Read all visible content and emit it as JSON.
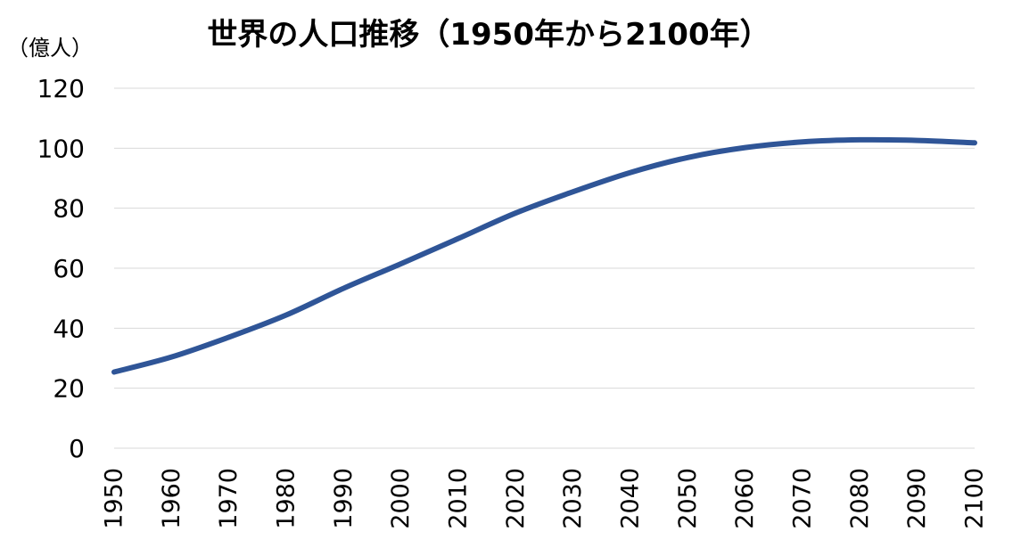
{
  "chart_data": {
    "type": "line",
    "title": "世界の人口推移（1950年から2100年）",
    "unit_label": "（億人）",
    "xlabel": "",
    "ylabel": "",
    "ylim": [
      0,
      120
    ],
    "y_ticks": [
      "0",
      "20",
      "40",
      "60",
      "80",
      "100",
      "120"
    ],
    "x_ticks": [
      "1950",
      "1960",
      "1970",
      "1980",
      "1990",
      "2000",
      "2010",
      "2020",
      "2030",
      "2040",
      "2050",
      "2060",
      "2070",
      "2080",
      "2090",
      "2100"
    ],
    "grid": true,
    "legend": "none",
    "series": [
      {
        "color": "#2f5597",
        "x": [
          1950,
          1960,
          1970,
          1980,
          1990,
          2000,
          2010,
          2020,
          2030,
          2040,
          2050,
          2060,
          2070,
          2080,
          2090,
          2100
        ],
        "values": [
          25.4,
          30.4,
          37.0,
          44.4,
          53.3,
          61.5,
          69.9,
          78.4,
          85.5,
          91.9,
          96.9,
          100.2,
          102.1,
          102.8,
          102.6,
          101.8
        ]
      }
    ]
  }
}
